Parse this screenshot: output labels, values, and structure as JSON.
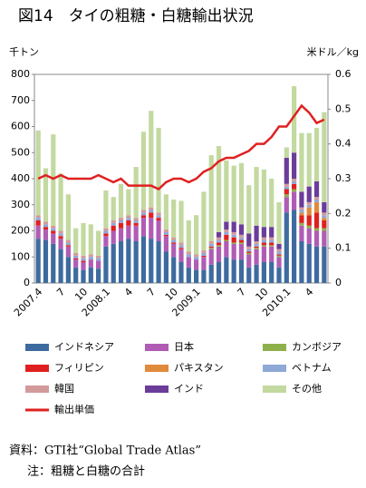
{
  "chart_data": {
    "type": "bar",
    "stacked": true,
    "title": "図14　タイの粗糖・白糖輸出状況",
    "y_label": "千トン",
    "y2_label": "米ドル／kg",
    "categories": [
      "2007.4",
      null,
      null,
      "7",
      null,
      null,
      "10",
      null,
      null,
      "2008.1",
      null,
      null,
      "4",
      null,
      null,
      "7",
      null,
      null,
      "10",
      null,
      null,
      "2009.1",
      null,
      null,
      "4",
      null,
      null,
      "7",
      null,
      null,
      "10",
      null,
      null,
      "2010.1",
      null,
      null,
      "4",
      null,
      null
    ],
    "ylim": [
      0,
      800
    ],
    "yticks": [
      0,
      100,
      200,
      300,
      400,
      500,
      600,
      700,
      800
    ],
    "y2lim": [
      0,
      0.6
    ],
    "y2ticks": [
      0,
      0.1,
      0.2,
      0.3,
      0.4,
      0.5,
      0.6
    ],
    "series": [
      {
        "name": "インドネシア",
        "color": "#3e6b9f",
        "values": [
          170,
          165,
          150,
          130,
          100,
          60,
          50,
          60,
          55,
          140,
          150,
          160,
          170,
          160,
          180,
          170,
          160,
          120,
          100,
          80,
          60,
          50,
          50,
          70,
          80,
          100,
          90,
          90,
          60,
          70,
          80,
          80,
          60,
          270,
          280,
          160,
          150,
          140,
          140
        ]
      },
      {
        "name": "日本",
        "color": "#b05cb5",
        "values": [
          50,
          40,
          40,
          40,
          40,
          30,
          30,
          30,
          30,
          40,
          50,
          50,
          50,
          60,
          70,
          80,
          80,
          60,
          50,
          50,
          40,
          40,
          50,
          60,
          60,
          60,
          60,
          60,
          50,
          60,
          60,
          60,
          40,
          60,
          70,
          60,
          60,
          60,
          60
        ]
      },
      {
        "name": "カンボジア",
        "color": "#8db04a",
        "values": [
          0,
          0,
          0,
          0,
          0,
          0,
          0,
          0,
          0,
          0,
          0,
          0,
          0,
          0,
          0,
          0,
          0,
          0,
          0,
          0,
          0,
          0,
          0,
          5,
          5,
          5,
          5,
          5,
          5,
          5,
          5,
          5,
          5,
          10,
          10,
          10,
          10,
          10,
          10
        ]
      },
      {
        "name": "フィリピン",
        "color": "#e02020",
        "values": [
          20,
          10,
          10,
          10,
          5,
          5,
          5,
          0,
          0,
          10,
          20,
          20,
          20,
          10,
          10,
          20,
          10,
          5,
          5,
          5,
          0,
          0,
          5,
          5,
          10,
          20,
          20,
          10,
          5,
          5,
          10,
          10,
          5,
          20,
          20,
          30,
          40,
          60,
          30
        ]
      },
      {
        "name": "パキスタン",
        "color": "#e08a3c",
        "values": [
          0,
          0,
          0,
          0,
          0,
          0,
          0,
          0,
          0,
          0,
          0,
          0,
          0,
          0,
          0,
          0,
          0,
          0,
          0,
          0,
          0,
          0,
          0,
          0,
          0,
          0,
          0,
          0,
          0,
          0,
          0,
          0,
          0,
          0,
          0,
          10,
          30,
          40,
          10
        ]
      },
      {
        "name": "ベトナム",
        "color": "#8fa9d6",
        "values": [
          10,
          10,
          10,
          10,
          10,
          10,
          10,
          10,
          10,
          10,
          10,
          10,
          10,
          10,
          10,
          10,
          10,
          10,
          10,
          10,
          10,
          10,
          10,
          10,
          10,
          10,
          10,
          10,
          10,
          10,
          10,
          10,
          10,
          10,
          10,
          10,
          10,
          10,
          10
        ]
      },
      {
        "name": "韓国",
        "color": "#d39a9a",
        "values": [
          10,
          10,
          10,
          10,
          10,
          10,
          10,
          10,
          10,
          10,
          10,
          10,
          10,
          10,
          10,
          10,
          10,
          10,
          10,
          10,
          10,
          10,
          10,
          10,
          10,
          10,
          10,
          10,
          10,
          10,
          10,
          10,
          10,
          10,
          10,
          10,
          10,
          10,
          10
        ]
      },
      {
        "name": "インド",
        "color": "#6a3d9a",
        "values": [
          0,
          0,
          0,
          0,
          0,
          0,
          0,
          0,
          0,
          0,
          0,
          0,
          0,
          0,
          0,
          0,
          0,
          0,
          0,
          0,
          0,
          0,
          0,
          0,
          20,
          30,
          40,
          40,
          50,
          60,
          40,
          40,
          20,
          100,
          100,
          60,
          60,
          60,
          40
        ]
      },
      {
        "name": "その他",
        "color": "#c3d9a0",
        "values": [
          325,
          205,
          350,
          220,
          175,
          95,
          125,
          115,
          95,
          145,
          90,
          130,
          100,
          195,
          300,
          370,
          325,
          135,
          145,
          160,
          120,
          150,
          225,
          330,
          330,
          235,
          215,
          235,
          185,
          225,
          220,
          185,
          160,
          40,
          255,
          225,
          205,
          205,
          345
        ]
      },
      {
        "name": "輸出単価",
        "type": "line",
        "axis": "y2",
        "color": "#e02020",
        "values": [
          0.3,
          0.31,
          0.3,
          0.31,
          0.3,
          0.3,
          0.3,
          0.3,
          0.31,
          0.3,
          0.29,
          0.3,
          0.28,
          0.28,
          0.28,
          0.28,
          0.27,
          0.29,
          0.3,
          0.3,
          0.29,
          0.3,
          0.32,
          0.33,
          0.35,
          0.36,
          0.36,
          0.37,
          0.38,
          0.4,
          0.4,
          0.42,
          0.45,
          0.45,
          0.48,
          0.51,
          0.49,
          0.46,
          0.47
        ]
      }
    ],
    "notes": [
      "資料：GTI社“Global Trade Atlas”",
      "注：粗糖と白糖の合計"
    ]
  }
}
